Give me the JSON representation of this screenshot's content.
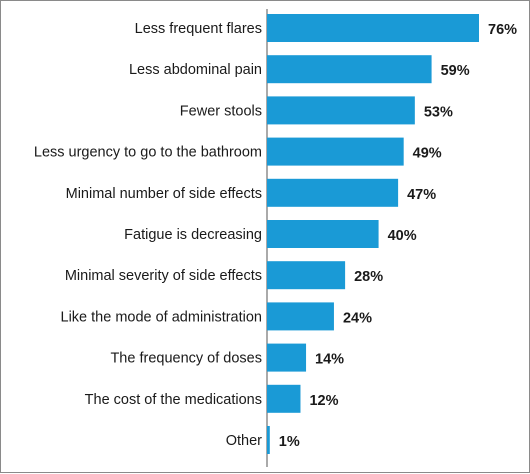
{
  "chart_data": {
    "type": "bar",
    "orientation": "horizontal",
    "categories": [
      "Less frequent flares",
      "Less abdominal pain",
      "Fewer stools",
      "Less urgency to go to the bathroom",
      "Minimal number of side effects",
      "Fatigue is decreasing",
      "Minimal severity of side effects",
      "Like the mode of administration",
      "The frequency of doses",
      "The cost of the medications",
      "Other"
    ],
    "values": [
      76,
      59,
      53,
      49,
      47,
      40,
      28,
      24,
      14,
      12,
      1
    ],
    "value_labels": [
      "76%",
      "59%",
      "53%",
      "49%",
      "47%",
      "40%",
      "28%",
      "24%",
      "14%",
      "12%",
      "1%"
    ],
    "xlim": [
      0,
      76
    ],
    "bar_color": "#1a9ad6",
    "grid": false,
    "legend": "none"
  }
}
